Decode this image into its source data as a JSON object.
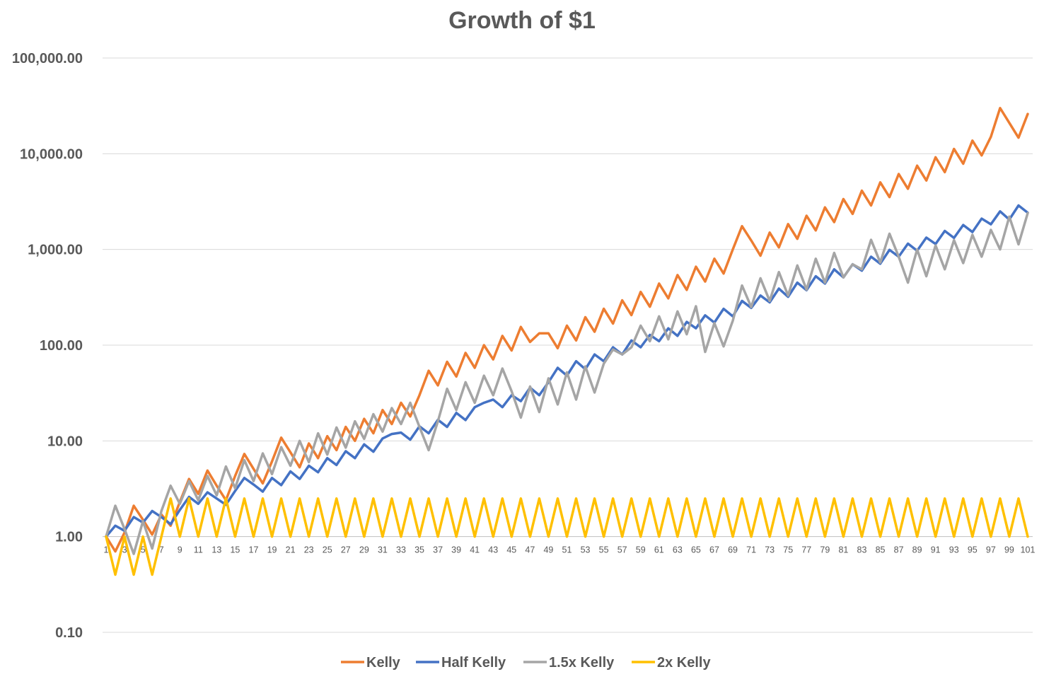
{
  "chart_data": {
    "type": "line",
    "title": "Growth of $1",
    "y_scale": "log",
    "ylim": [
      0.1,
      100000
    ],
    "y_tick_values": [
      100000,
      10000,
      1000,
      100,
      10,
      1,
      0.1
    ],
    "y_tick_labels": [
      "100,000.00",
      "10,000.00",
      "1,000.00",
      "100.00",
      "10.00",
      "1.00",
      "0.10"
    ],
    "x": [
      1,
      2,
      3,
      4,
      5,
      6,
      7,
      8,
      9,
      10,
      11,
      12,
      13,
      14,
      15,
      16,
      17,
      18,
      19,
      20,
      21,
      22,
      23,
      24,
      25,
      26,
      27,
      28,
      29,
      30,
      31,
      32,
      33,
      34,
      35,
      36,
      37,
      38,
      39,
      40,
      41,
      42,
      43,
      44,
      45,
      46,
      47,
      48,
      49,
      50,
      51,
      52,
      53,
      54,
      55,
      56,
      57,
      58,
      59,
      60,
      61,
      62,
      63,
      64,
      65,
      66,
      67,
      68,
      69,
      70,
      71,
      72,
      73,
      74,
      75,
      76,
      77,
      78,
      79,
      80,
      81,
      82,
      83,
      84,
      85,
      86,
      87,
      88,
      89,
      90,
      91,
      92,
      93,
      94,
      95,
      96,
      97,
      98,
      99,
      100,
      101
    ],
    "x_tick_labels": [
      "1",
      "3",
      "5",
      "7",
      "9",
      "11",
      "13",
      "15",
      "17",
      "19",
      "21",
      "23",
      "25",
      "27",
      "29",
      "31",
      "33",
      "35",
      "37",
      "39",
      "41",
      "43",
      "45",
      "47",
      "49",
      "51",
      "53",
      "55",
      "57",
      "59",
      "61",
      "63",
      "65",
      "67",
      "69",
      "71",
      "73",
      "75",
      "77",
      "79",
      "81",
      "83",
      "85",
      "87",
      "89",
      "91",
      "93",
      "95",
      "97",
      "99",
      "101"
    ],
    "gridlines": true,
    "legend_position": "bottom",
    "series": [
      {
        "name": "Kelly",
        "color": "#ed7d31",
        "values": [
          1,
          0.7,
          1.1,
          2.1,
          1.5,
          1.05,
          1.7,
          1.3,
          2.3,
          4,
          2.8,
          4.9,
          3.4,
          2.4,
          4.3,
          7.3,
          5.1,
          3.6,
          6.1,
          10.8,
          7.6,
          5.3,
          9.4,
          6.6,
          11.2,
          8,
          14,
          10,
          17,
          12,
          21,
          15,
          25,
          18,
          30,
          54,
          38,
          67,
          47,
          83,
          58,
          100,
          71,
          125,
          88,
          155,
          108,
          133,
          133,
          93,
          160,
          112,
          196,
          138,
          240,
          168,
          294,
          206,
          360,
          252,
          440,
          308,
          540,
          378,
          660,
          462,
          800,
          560,
          1000,
          1750,
          1240,
          860,
          1500,
          1050,
          1840,
          1290,
          2250,
          1580,
          2750,
          1930,
          3360,
          2350,
          4110,
          2880,
          5020,
          3520,
          6140,
          4300,
          7500,
          5250,
          9180,
          6420,
          11220,
          7860,
          13700,
          9600,
          15000,
          30000,
          21000,
          14700,
          26000
        ]
      },
      {
        "name": "Half Kelly",
        "color": "#4472c4",
        "values": [
          1,
          1.3,
          1.15,
          1.6,
          1.4,
          1.85,
          1.6,
          1.35,
          1.9,
          2.6,
          2.2,
          2.9,
          2.5,
          2.15,
          3,
          4.1,
          3.5,
          2.95,
          4.1,
          3.45,
          4.8,
          4,
          5.5,
          4.7,
          6.6,
          5.6,
          7.8,
          6.6,
          9.2,
          7.7,
          10.6,
          11.8,
          12.2,
          10.3,
          14.2,
          12,
          16.6,
          14,
          19.6,
          16.5,
          22.5,
          25,
          27,
          22.5,
          30,
          26,
          36,
          30,
          41,
          58,
          48,
          68,
          56,
          80,
          68,
          95,
          80,
          112,
          95,
          128,
          110,
          150,
          125,
          175,
          150,
          205,
          172,
          240,
          200,
          290,
          245,
          330,
          280,
          390,
          320,
          450,
          375,
          525,
          440,
          620,
          510,
          700,
          600,
          840,
          710,
          990,
          840,
          1150,
          970,
          1330,
          1140,
          1560,
          1320,
          1800,
          1520,
          2100,
          1830,
          2500,
          2050,
          2880,
          2420
        ]
      },
      {
        "name": "1.5x Kelly",
        "color": "#a5a5a5",
        "values": [
          1,
          2.1,
          1.2,
          0.66,
          1.45,
          0.75,
          1.85,
          3.4,
          2.2,
          3.8,
          2.4,
          4.3,
          2.7,
          5.4,
          3.2,
          6.3,
          3.8,
          7.4,
          4.5,
          8.6,
          5.5,
          10,
          6,
          12,
          7.2,
          13.8,
          8.5,
          16,
          10.5,
          19,
          12.5,
          22,
          15,
          25,
          14,
          8,
          16,
          35,
          21,
          41,
          25,
          48,
          30,
          57,
          33,
          17.5,
          37,
          20,
          45,
          24,
          52,
          27,
          60,
          32,
          64,
          90,
          80,
          95,
          160,
          110,
          200,
          115,
          225,
          130,
          255,
          85,
          170,
          97,
          180,
          420,
          250,
          500,
          290,
          580,
          330,
          680,
          380,
          800,
          450,
          920,
          510,
          700,
          620,
          1260,
          730,
          1460,
          840,
          450,
          1000,
          525,
          1100,
          620,
          1250,
          720,
          1420,
          840,
          1600,
          1000,
          2200,
          1130,
          2400
        ]
      },
      {
        "name": "2x Kelly",
        "color": "#ffc000",
        "values": [
          1,
          0.4,
          1,
          0.4,
          1,
          0.4,
          1,
          2.5,
          1,
          2.5,
          1,
          2.5,
          1,
          2.5,
          1,
          2.5,
          1,
          2.5,
          1,
          2.5,
          1,
          2.5,
          1,
          2.5,
          1,
          2.5,
          1,
          2.5,
          1,
          2.5,
          1,
          2.5,
          1,
          2.5,
          1,
          2.5,
          1,
          2.5,
          1,
          2.5,
          1,
          2.5,
          1,
          2.5,
          1,
          2.5,
          1,
          2.5,
          1,
          2.5,
          1,
          2.5,
          1,
          2.5,
          1,
          2.5,
          1,
          2.5,
          1,
          2.5,
          1,
          2.5,
          1,
          2.5,
          1,
          2.5,
          1,
          2.5,
          1,
          2.5,
          1,
          2.5,
          1,
          2.5,
          1,
          2.5,
          1,
          2.5,
          1,
          2.5,
          1,
          2.5,
          1,
          2.5,
          1,
          2.5,
          1,
          2.5,
          1,
          2.5,
          1,
          2.5,
          1,
          2.5,
          1,
          2.5,
          1,
          2.5,
          1,
          2.5,
          1
        ]
      }
    ]
  }
}
